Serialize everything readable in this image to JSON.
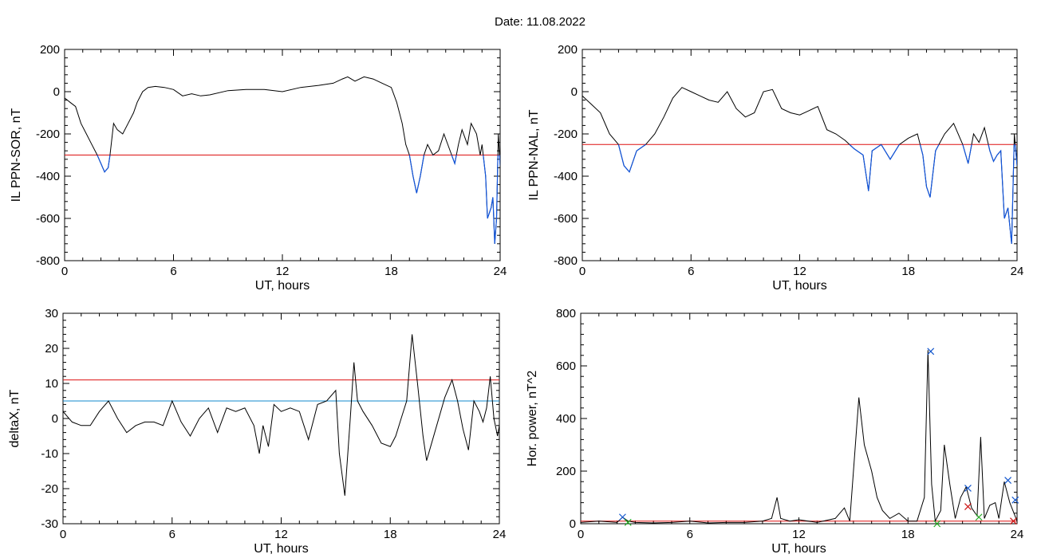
{
  "page": {
    "title": "Date:  11.08.2022"
  },
  "chart_data": [
    {
      "id": "sor",
      "type": "line",
      "xlabel": "UT, hours",
      "ylabel": "IL PPN-SOR, nT",
      "xlim": [
        0,
        24
      ],
      "ylim": [
        -800,
        200
      ],
      "xticks": [
        0,
        6,
        12,
        18,
        24
      ],
      "yticks": [
        -800,
        -600,
        -400,
        -200,
        0,
        200
      ],
      "threshold": {
        "value": -300,
        "color": "#dd1111"
      },
      "below_color": "#1155dd",
      "series": [
        {
          "color": "#000000",
          "x": [
            0,
            0.3,
            0.6,
            0.9,
            1.2,
            1.5,
            1.8,
            2.0,
            2.2,
            2.4,
            2.5,
            2.7,
            2.9,
            3.2,
            3.5,
            3.8,
            4.0,
            4.3,
            4.6,
            5.0,
            5.5,
            6.0,
            6.5,
            7.0,
            7.5,
            8.0,
            9.0,
            10.0,
            11.0,
            12.0,
            13.0,
            14.0,
            14.8,
            15.3,
            15.6,
            16.0,
            16.5,
            17.0,
            17.5,
            18.0,
            18.3,
            18.6,
            18.8,
            19.0,
            19.2,
            19.4,
            19.6,
            19.8,
            20.0,
            20.3,
            20.6,
            20.9,
            21.2,
            21.5,
            21.7,
            21.9,
            22.2,
            22.4,
            22.7,
            22.9,
            23.0,
            23.2,
            23.3,
            23.5,
            23.6,
            23.7,
            23.8,
            23.9,
            24.0
          ],
          "y": [
            -30,
            -50,
            -70,
            -150,
            -200,
            -250,
            -300,
            -340,
            -380,
            -360,
            -300,
            -150,
            -180,
            -200,
            -150,
            -100,
            -50,
            0,
            20,
            25,
            20,
            10,
            -20,
            -10,
            -20,
            -15,
            5,
            10,
            10,
            0,
            20,
            30,
            40,
            60,
            70,
            50,
            70,
            60,
            40,
            20,
            -50,
            -150,
            -250,
            -300,
            -400,
            -480,
            -400,
            -300,
            -250,
            -300,
            -280,
            -200,
            -270,
            -340,
            -250,
            -180,
            -250,
            -150,
            -200,
            -300,
            -250,
            -400,
            -600,
            -550,
            -500,
            -720,
            -600,
            -200,
            -350
          ]
        }
      ]
    },
    {
      "id": "nal",
      "type": "line",
      "xlabel": "UT, hours",
      "ylabel": "IL PPN-NAL, nT",
      "xlim": [
        0,
        24
      ],
      "ylim": [
        -800,
        200
      ],
      "xticks": [
        0,
        6,
        12,
        18,
        24
      ],
      "yticks": [
        -800,
        -600,
        -400,
        -200,
        0,
        200
      ],
      "threshold": {
        "value": -250,
        "color": "#dd1111"
      },
      "below_color": "#1155dd",
      "series": [
        {
          "color": "#000000",
          "x": [
            0,
            0.5,
            1.0,
            1.5,
            2.0,
            2.3,
            2.6,
            3.0,
            3.5,
            4.0,
            4.5,
            5.0,
            5.5,
            6.0,
            6.5,
            7.0,
            7.5,
            8.0,
            8.5,
            9.0,
            9.5,
            10.0,
            10.5,
            11.0,
            11.5,
            12.0,
            12.5,
            13.0,
            13.5,
            14.0,
            14.5,
            15.0,
            15.5,
            15.8,
            16.0,
            16.5,
            17.0,
            17.5,
            18.0,
            18.5,
            18.8,
            19.0,
            19.2,
            19.5,
            20.0,
            20.5,
            21.0,
            21.3,
            21.6,
            21.9,
            22.2,
            22.5,
            22.7,
            22.9,
            23.1,
            23.3,
            23.5,
            23.7,
            23.85,
            24.0
          ],
          "y": [
            -20,
            -60,
            -100,
            -200,
            -250,
            -350,
            -380,
            -280,
            -250,
            -200,
            -120,
            -30,
            20,
            0,
            -20,
            -40,
            -50,
            0,
            -80,
            -120,
            -100,
            0,
            10,
            -80,
            -100,
            -110,
            -90,
            -70,
            -180,
            -200,
            -230,
            -270,
            -300,
            -470,
            -280,
            -250,
            -320,
            -250,
            -220,
            -200,
            -300,
            -450,
            -500,
            -280,
            -200,
            -150,
            -250,
            -340,
            -200,
            -240,
            -170,
            -280,
            -330,
            -300,
            -280,
            -600,
            -550,
            -720,
            -200,
            -350
          ]
        }
      ]
    },
    {
      "id": "deltax",
      "type": "line",
      "xlabel": "UT, hours",
      "ylabel": "deltaX, nT",
      "xlim": [
        0,
        24
      ],
      "ylim": [
        -30,
        30
      ],
      "xticks": [
        0,
        6,
        12,
        18,
        24
      ],
      "yticks": [
        -30,
        -20,
        -10,
        0,
        10,
        20,
        30
      ],
      "hlines": [
        {
          "value": 11,
          "color": "#dd1111"
        },
        {
          "value": 5,
          "color": "#1188cc"
        }
      ],
      "series": [
        {
          "color": "#000000",
          "x": [
            0,
            0.5,
            1.0,
            1.5,
            2.0,
            2.5,
            3.0,
            3.5,
            4.0,
            4.5,
            5.0,
            5.5,
            6.0,
            6.5,
            7.0,
            7.5,
            8.0,
            8.5,
            9.0,
            9.5,
            10.0,
            10.5,
            10.8,
            11.0,
            11.3,
            11.6,
            12.0,
            12.5,
            13.0,
            13.5,
            14.0,
            14.5,
            15.0,
            15.2,
            15.5,
            15.8,
            16.0,
            16.2,
            16.5,
            17.0,
            17.5,
            18.0,
            18.3,
            18.6,
            18.9,
            19.2,
            19.5,
            19.8,
            20.0,
            20.5,
            21.0,
            21.4,
            21.7,
            22.0,
            22.3,
            22.6,
            22.9,
            23.1,
            23.3,
            23.5,
            23.7,
            23.9,
            24.0
          ],
          "y": [
            2,
            -1,
            -2,
            -2,
            2,
            5,
            0,
            -4,
            -2,
            -1,
            -1,
            -2,
            5,
            -1,
            -5,
            0,
            3,
            -4,
            3,
            2,
            3,
            -2,
            -10,
            -2,
            -8,
            4,
            2,
            3,
            2,
            -6,
            4,
            5,
            8,
            -10,
            -22,
            0,
            16,
            5,
            2,
            -2,
            -7,
            -8,
            -5,
            0,
            5,
            24,
            10,
            -5,
            -12,
            -3,
            6,
            11,
            5,
            -3,
            -9,
            5,
            2,
            -1,
            3,
            12,
            0,
            -5,
            -2
          ]
        }
      ]
    },
    {
      "id": "power",
      "type": "line",
      "xlabel": "UT, hours",
      "ylabel": "Hor. power, nT^2",
      "xlim": [
        0,
        24
      ],
      "ylim": [
        0,
        800
      ],
      "xticks": [
        0,
        6,
        12,
        18,
        24
      ],
      "yticks": [
        0,
        200,
        400,
        600,
        800
      ],
      "threshold": {
        "value": 10,
        "color": "#dd1111"
      },
      "series": [
        {
          "color": "#000000",
          "x": [
            0,
            1.0,
            2.0,
            2.3,
            2.6,
            3.0,
            4.0,
            5.0,
            6.0,
            7.0,
            8.0,
            9.0,
            10.0,
            10.5,
            10.8,
            11.0,
            11.5,
            12.0,
            13.0,
            14.0,
            14.5,
            14.8,
            15.0,
            15.3,
            15.6,
            16.0,
            16.3,
            16.6,
            17.0,
            17.5,
            18.0,
            18.5,
            18.9,
            19.1,
            19.3,
            19.5,
            19.8,
            20.0,
            20.3,
            20.6,
            20.9,
            21.2,
            21.5,
            21.8,
            22.0,
            22.2,
            22.5,
            22.8,
            23.0,
            23.3,
            23.6,
            24.0
          ],
          "y": [
            5,
            10,
            5,
            25,
            10,
            5,
            3,
            5,
            10,
            3,
            5,
            5,
            10,
            20,
            100,
            20,
            10,
            15,
            5,
            20,
            60,
            10,
            200,
            480,
            300,
            200,
            100,
            50,
            20,
            40,
            10,
            10,
            100,
            660,
            150,
            10,
            50,
            300,
            150,
            20,
            100,
            140,
            60,
            30,
            330,
            20,
            70,
            80,
            20,
            160,
            80,
            10
          ]
        }
      ],
      "markers": [
        {
          "x": 2.3,
          "y": 25,
          "color": "#1155cc",
          "symbol": "x"
        },
        {
          "x": 19.25,
          "y": 655,
          "color": "#1155cc",
          "symbol": "x"
        },
        {
          "x": 21.3,
          "y": 135,
          "color": "#1155cc",
          "symbol": "x"
        },
        {
          "x": 23.5,
          "y": 165,
          "color": "#1155cc",
          "symbol": "x"
        },
        {
          "x": 23.9,
          "y": 90,
          "color": "#1155cc",
          "symbol": "x"
        },
        {
          "x": 21.3,
          "y": 65,
          "color": "#cc1111",
          "symbol": "x"
        },
        {
          "x": 23.8,
          "y": 10,
          "color": "#cc1111",
          "symbol": "x"
        },
        {
          "x": 2.6,
          "y": 5,
          "color": "#22aa22",
          "symbol": "x"
        },
        {
          "x": 19.6,
          "y": 0,
          "color": "#22aa22",
          "symbol": "x"
        },
        {
          "x": 21.9,
          "y": 25,
          "color": "#22aa22",
          "symbol": "x"
        }
      ]
    }
  ]
}
